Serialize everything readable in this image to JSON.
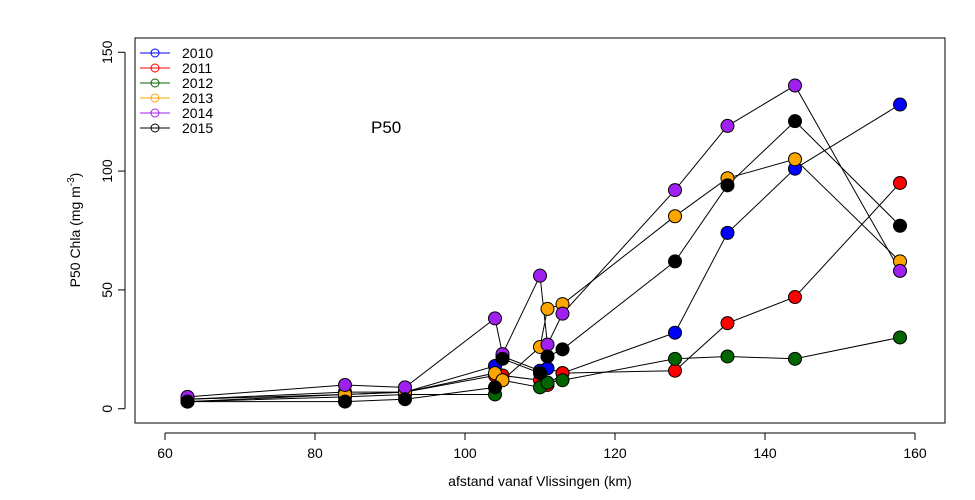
{
  "chart_data": {
    "type": "line",
    "annotation": "P50",
    "xlabel": "afstand vanaf Vlissingen (km)",
    "ylabel_main": "P50 Chla (mg m",
    "ylabel_sup": "-3",
    "ylabel_close": ")",
    "xlim": [
      56,
      164
    ],
    "ylim": [
      -6,
      156
    ],
    "x_ticks": [
      60,
      80,
      100,
      120,
      140,
      160
    ],
    "y_ticks": [
      0,
      50,
      100,
      150
    ],
    "legend_position": "top-left",
    "grid": false,
    "series": [
      {
        "name": "2010",
        "color": "#0000FF",
        "x": [
          63,
          84,
          92,
          104,
          105,
          110,
          111,
          113,
          128,
          135,
          144,
          158
        ],
        "y": [
          4,
          6,
          7,
          18,
          22,
          16,
          17,
          15,
          32,
          74,
          101,
          128
        ]
      },
      {
        "name": "2011",
        "color": "#FF0000",
        "x": [
          63,
          84,
          92,
          104,
          105,
          110,
          111,
          113,
          128,
          135,
          144,
          158
        ],
        "y": [
          4,
          7,
          7,
          14,
          14,
          12,
          10,
          15,
          16,
          36,
          47,
          95
        ]
      },
      {
        "name": "2012",
        "color": "#006400",
        "x": [
          63,
          84,
          92,
          104,
          105,
          110,
          111,
          113,
          128,
          135,
          144,
          158
        ],
        "y": [
          3,
          5,
          6,
          6,
          12,
          9,
          11,
          12,
          21,
          22,
          21,
          30
        ]
      },
      {
        "name": "2013",
        "color": "#FFA500",
        "x": [
          63,
          84,
          92,
          104,
          105,
          110,
          111,
          113,
          128,
          135,
          144,
          158
        ],
        "y": [
          3,
          6,
          7,
          15,
          12,
          26,
          42,
          44,
          81,
          97,
          105,
          62
        ]
      },
      {
        "name": "2014",
        "color": "#A020F0",
        "x": [
          63,
          84,
          92,
          104,
          105,
          110,
          111,
          113,
          128,
          135,
          144,
          158
        ],
        "y": [
          5,
          10,
          9,
          38,
          23,
          56,
          27,
          40,
          92,
          119,
          136,
          58
        ]
      },
      {
        "name": "2015",
        "color": "#000000",
        "x": [
          63,
          84,
          92,
          104,
          105,
          110,
          111,
          113,
          128,
          135,
          144,
          158
        ],
        "y": [
          3,
          3,
          4,
          9,
          21,
          15,
          22,
          25,
          62,
          94,
          121,
          77
        ]
      }
    ]
  }
}
